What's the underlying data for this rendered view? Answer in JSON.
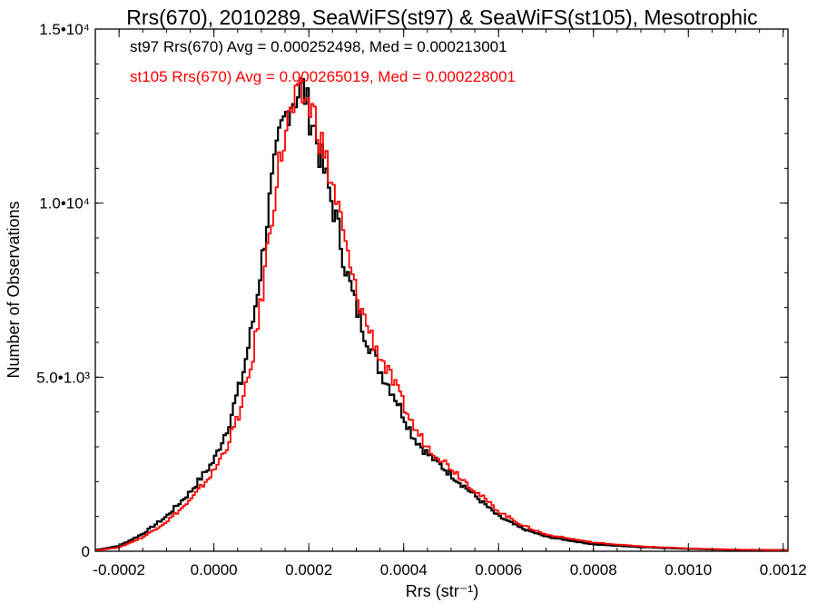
{
  "chart_data": {
    "type": "histogram",
    "title": "Rrs(670), 2010289, SeaWiFS(st97) & SeaWiFS(st105), Mesotrophic",
    "xlabel": "Rrs (str⁻¹)",
    "ylabel": "Number of Observations",
    "xlim": [
      -0.00025,
      0.00121
    ],
    "ylim": [
      0,
      15000
    ],
    "x_ticks": [
      {
        "value": -0.0002,
        "label": "-0.0002"
      },
      {
        "value": 0.0,
        "label": "0.0000"
      },
      {
        "value": 0.0002,
        "label": "0.0002"
      },
      {
        "value": 0.0004,
        "label": "0.0004"
      },
      {
        "value": 0.0006,
        "label": "0.0006"
      },
      {
        "value": 0.0008,
        "label": "0.0008"
      },
      {
        "value": 0.001,
        "label": "0.0010"
      },
      {
        "value": 0.0012,
        "label": "0.0012"
      }
    ],
    "y_ticks": [
      {
        "value": 0,
        "label": "0"
      },
      {
        "value": 5000,
        "label": "5.0•1.0³"
      },
      {
        "value": 10000,
        "label": "1.0•10⁴"
      },
      {
        "value": 15000,
        "label": "1.5•10⁴"
      }
    ],
    "grid": false,
    "legend_position": "top-left",
    "series": [
      {
        "name": "st97",
        "legend": "st97 Rrs(670) Avg = 0.000252498, Med = 0.000213001",
        "color": "#000000",
        "bin_width": 5e-06,
        "x": [
          -0.00025,
          -0.0002,
          -0.00015,
          -0.0001,
          -5e-05,
          0.0,
          3e-05,
          6e-05,
          8e-05,
          0.0001,
          0.00012,
          0.00014,
          0.00016,
          0.00018,
          0.00019,
          0.0002,
          0.00021,
          0.00022,
          0.00024,
          0.00026,
          0.00028,
          0.0003,
          0.00032,
          0.00035,
          0.00038,
          0.0004,
          0.00042,
          0.00045,
          0.0005,
          0.00055,
          0.0006,
          0.00065,
          0.0007,
          0.0008,
          0.0009,
          0.001,
          0.0011,
          0.00121
        ],
        "y": [
          30,
          150,
          500,
          1000,
          1700,
          2600,
          3600,
          5000,
          6400,
          8200,
          10300,
          12000,
          12900,
          13200,
          13300,
          12600,
          12300,
          11600,
          10500,
          9400,
          8000,
          7000,
          6200,
          5200,
          4500,
          3900,
          3300,
          2800,
          2200,
          1600,
          1000,
          650,
          420,
          200,
          120,
          70,
          40,
          30
        ]
      },
      {
        "name": "st105",
        "legend": "st105 Rrs(670) Avg = 0.000265019, Med = 0.000228001",
        "color": "#ff0000",
        "bin_width": 5e-06,
        "x": [
          -0.00025,
          -0.0002,
          -0.00015,
          -0.0001,
          -5e-05,
          0.0,
          3e-05,
          6e-05,
          8e-05,
          0.0001,
          0.00012,
          0.00014,
          0.00016,
          0.00018,
          0.00019,
          0.0002,
          0.00021,
          0.00022,
          0.00024,
          0.00026,
          0.00028,
          0.0003,
          0.00032,
          0.00035,
          0.00038,
          0.0004,
          0.00042,
          0.00045,
          0.0005,
          0.00055,
          0.0006,
          0.00065,
          0.0007,
          0.0008,
          0.0009,
          0.001,
          0.0011,
          0.00121
        ],
        "y": [
          20,
          110,
          400,
          850,
          1450,
          2300,
          3100,
          4200,
          5400,
          7200,
          9500,
          11300,
          12500,
          13000,
          13100,
          12800,
          12600,
          12100,
          11000,
          10000,
          8600,
          7400,
          6600,
          5600,
          4800,
          4200,
          3600,
          3000,
          2400,
          1750,
          1150,
          750,
          480,
          250,
          140,
          80,
          45,
          30
        ]
      }
    ]
  }
}
